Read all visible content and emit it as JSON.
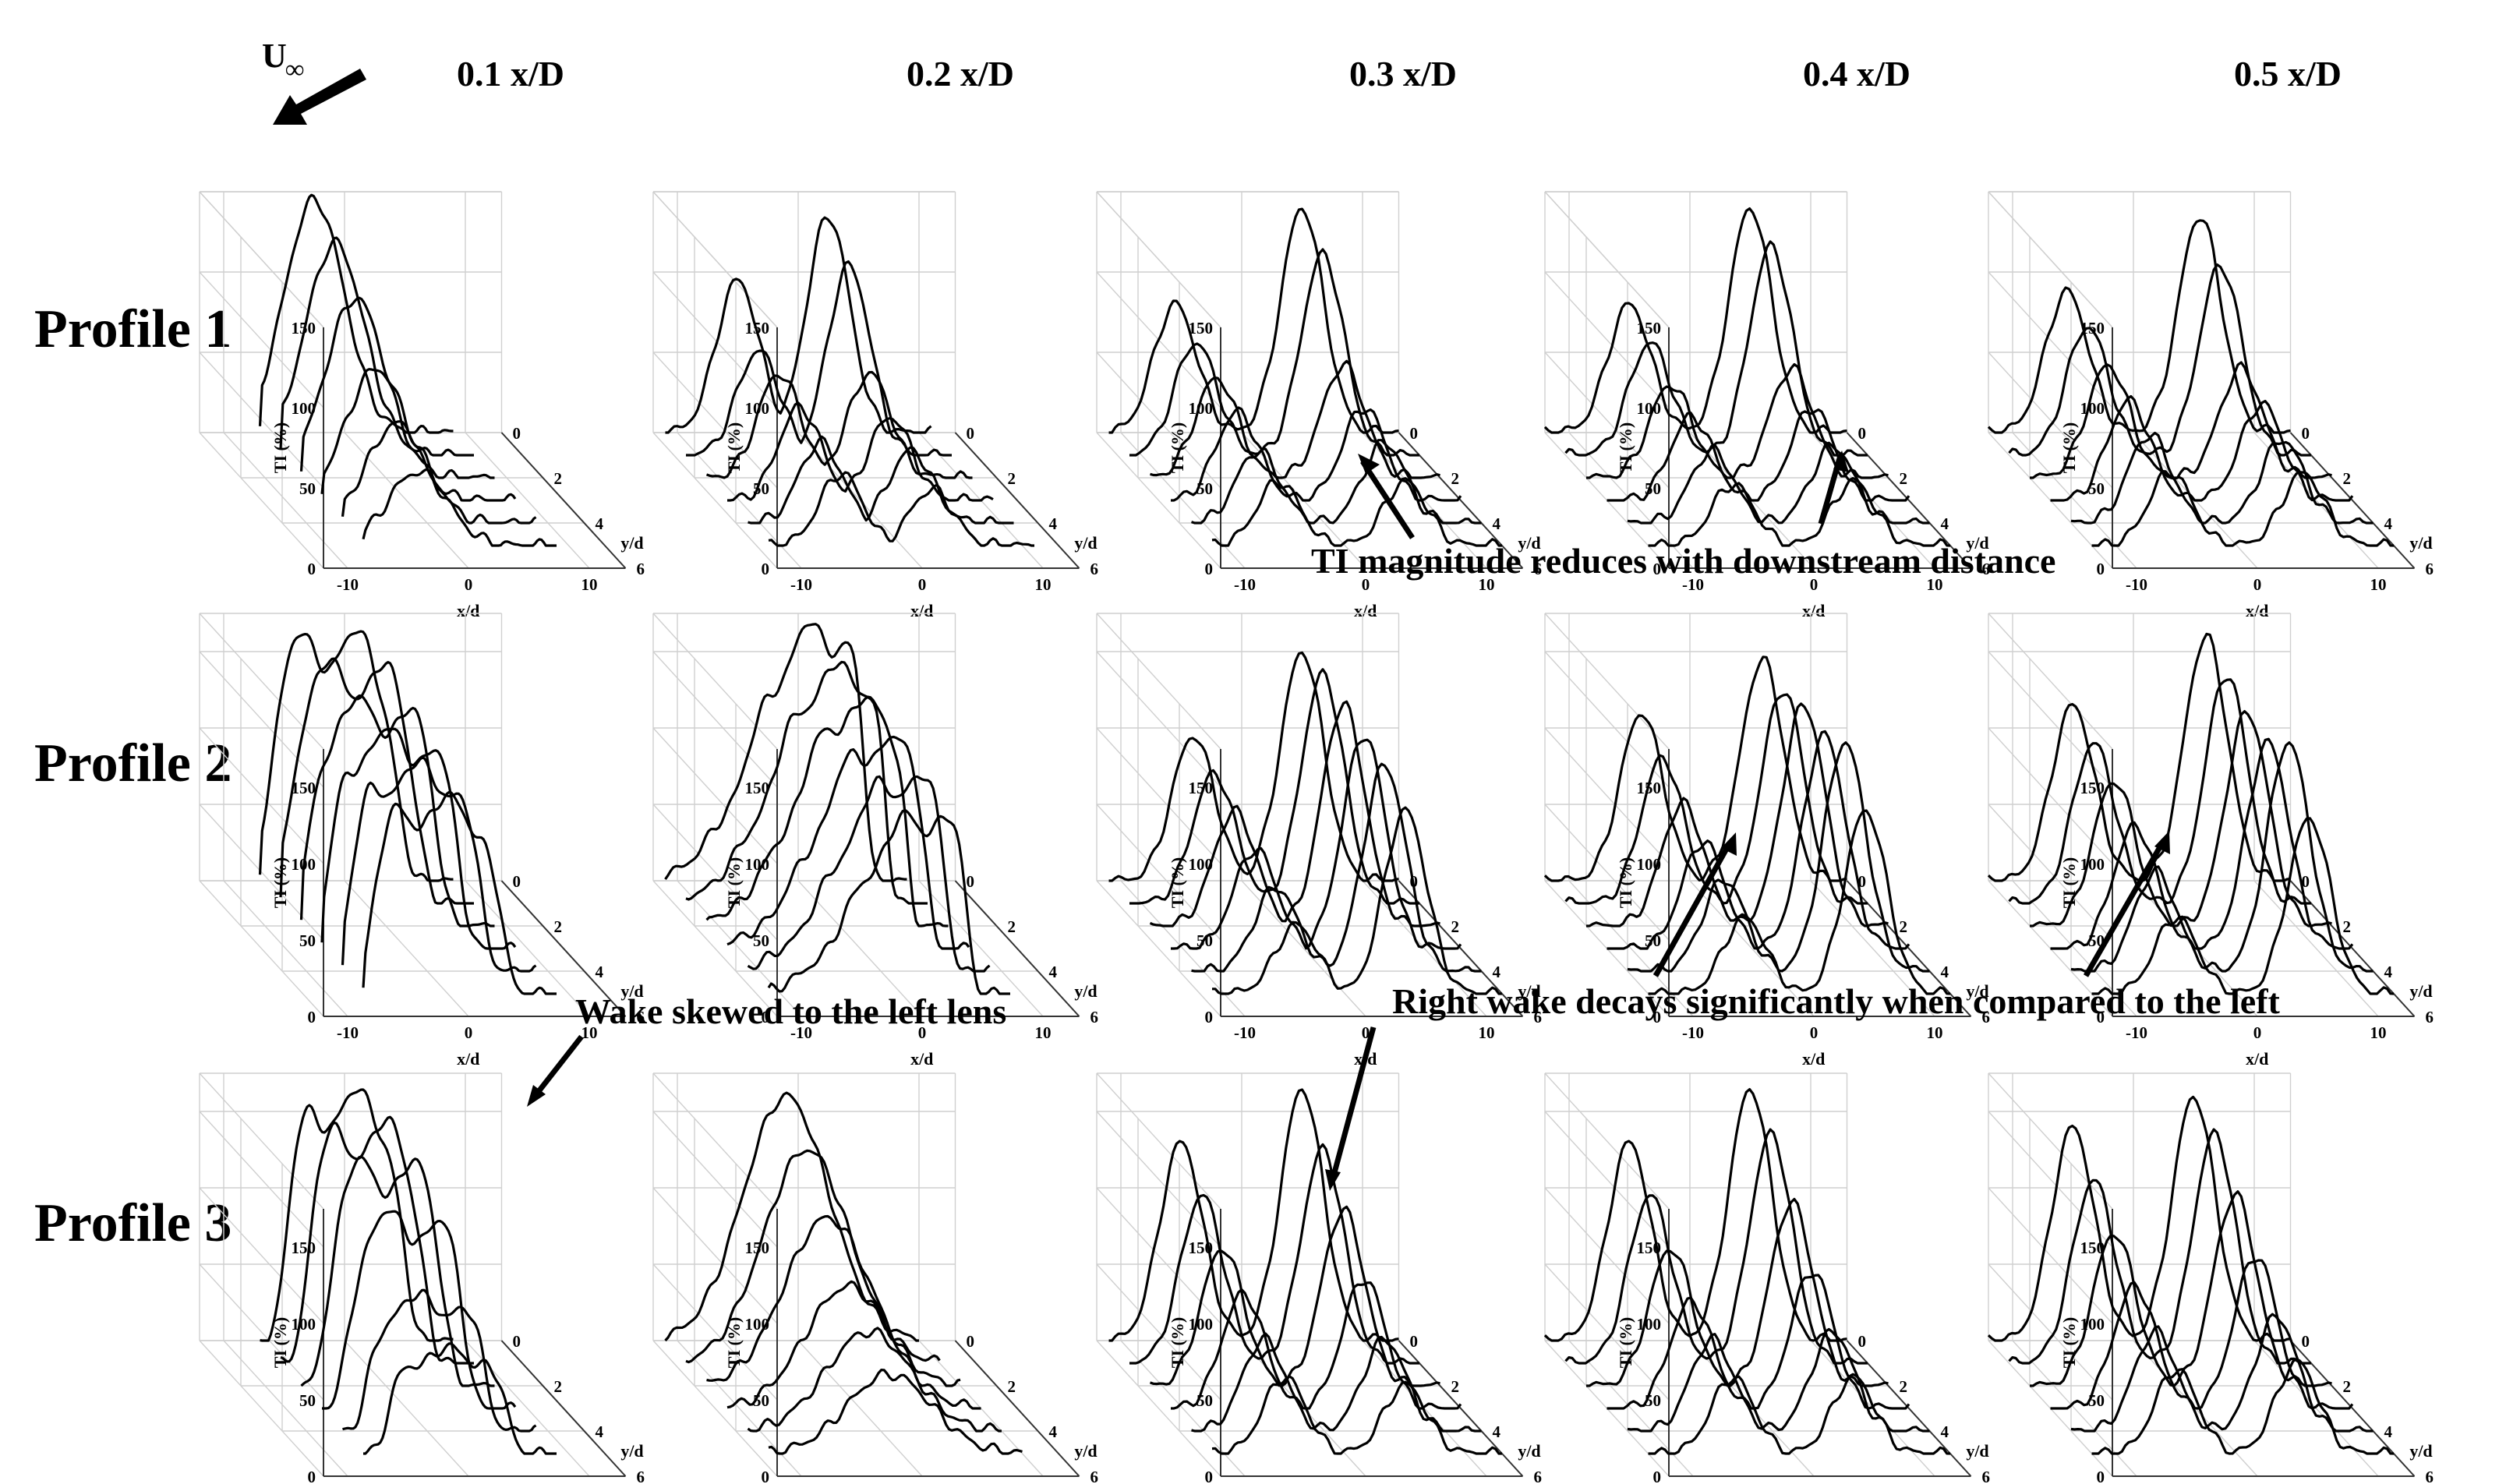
{
  "figure": {
    "freestream_label": "U",
    "freestream_subscript": "∞",
    "column_titles": [
      "0.1 x/D",
      "0.2 x/D",
      "0.3 x/D",
      "0.4 x/D",
      "0.5 x/D"
    ],
    "row_titles": [
      "Profile 1",
      "Profile 2",
      "Profile 3"
    ],
    "annotations": {
      "ti_magnitude": "TI magnitude reduces with downstream distance",
      "wake_skewed": "Wake skewed to the left lens",
      "right_wake": "Right wake decays significantly when compared to the left"
    }
  },
  "chart_data": {
    "type": "line",
    "subtype": "3d-waterfall",
    "layout": {
      "rows": 3,
      "cols": 5
    },
    "axes": {
      "xlabel": "x/d",
      "ylabel": "y/d",
      "zlabel": "TI (%)",
      "x_ticks": [
        -10,
        0,
        10
      ],
      "y_ticks": [
        0,
        2,
        4,
        6
      ],
      "z_ticks_profile1": [
        0,
        50,
        100,
        150
      ],
      "z_ticks_profile23": [
        0,
        50,
        100,
        150
      ],
      "xlim": [
        -12,
        13
      ],
      "ylim": [
        0,
        6
      ],
      "zlim_profile1": [
        0,
        150
      ],
      "zlim_profile23": [
        0,
        175
      ],
      "grid": true
    },
    "slice_y_positions": [
      0,
      1,
      2,
      3,
      4,
      5
    ],
    "panels": [
      {
        "row": 1,
        "col": 1,
        "mode": "single",
        "c1": -2.5,
        "w1": 3.5,
        "peaks": [
          46,
          62,
          82,
          112,
          132,
          145
        ],
        "edges": [
          -7,
          9
        ]
      },
      {
        "row": 1,
        "col": 2,
        "mode": "twin",
        "c1": -5,
        "c2": 2.5,
        "w1": 2.5,
        "w2": 2.5,
        "left": [
          45,
          50,
          58,
          65,
          65,
          95
        ],
        "right": [
          35,
          45,
          52,
          65,
          118,
          135
        ],
        "edges": [
          -11,
          11
        ]
      },
      {
        "row": 1,
        "col": 3,
        "mode": "twin",
        "c1": -5.5,
        "c2": 5,
        "w1": 2.5,
        "w2": 2.5,
        "left": [
          40,
          45,
          55,
          62,
          70,
          80
        ],
        "right": [
          40,
          50,
          58,
          70,
          125,
          140
        ],
        "edges": [
          -11,
          13
        ]
      },
      {
        "row": 1,
        "col": 4,
        "mode": "twin",
        "c1": -5,
        "c2": 5,
        "w1": 2.5,
        "w2": 2.5,
        "left": [
          38,
          45,
          52,
          58,
          70,
          80
        ],
        "right": [
          40,
          48,
          58,
          68,
          130,
          140
        ],
        "edges": [
          -12,
          13
        ]
      },
      {
        "row": 1,
        "col": 5,
        "mode": "twin",
        "c1": -5.5,
        "c2": 5.5,
        "w1": 2.5,
        "w2": 2.5,
        "left": [
          46,
          55,
          62,
          70,
          80,
          88
        ],
        "right": [
          45,
          52,
          60,
          68,
          118,
          135
        ],
        "edges": [
          -12,
          13
        ]
      },
      {
        "row": 2,
        "col": 1,
        "mode": "plateau",
        "c1": -1,
        "w1": 5.5,
        "peaks": [
          130,
          138,
          145,
          150,
          160,
          165
        ],
        "edges": [
          -7,
          9
        ]
      },
      {
        "row": 2,
        "col": 2,
        "mode": "ramp",
        "c1": 1,
        "w1": 6,
        "peaks": [
          120,
          130,
          140,
          150,
          158,
          170
        ],
        "edges": [
          -11,
          9
        ]
      },
      {
        "row": 2,
        "col": 3,
        "mode": "twin",
        "c1": -4,
        "c2": 5,
        "w1": 2.5,
        "w2": 2.5,
        "left": [
          45,
          55,
          65,
          75,
          85,
          95
        ],
        "right": [
          120,
          135,
          140,
          145,
          150,
          150
        ],
        "edges": [
          -11,
          13
        ]
      },
      {
        "row": 2,
        "col": 4,
        "mode": "twin",
        "c1": -4,
        "c2": 6,
        "w1": 2.5,
        "w2": 2.5,
        "left": [
          50,
          60,
          70,
          80,
          95,
          110
        ],
        "right": [
          120,
          150,
          140,
          145,
          140,
          145
        ],
        "edges": [
          -12,
          13
        ]
      },
      {
        "row": 2,
        "col": 5,
        "mode": "twin",
        "c1": -5,
        "c2": 6,
        "w1": 2.5,
        "w2": 2.5,
        "left": [
          50,
          65,
          80,
          95,
          105,
          115
        ],
        "right": [
          115,
          150,
          135,
          140,
          150,
          160
        ],
        "edges": [
          -12,
          13
        ]
      },
      {
        "row": 3,
        "col": 1,
        "mode": "plateau",
        "c1": 0,
        "w1": 5,
        "peaks": [
          70,
          90,
          130,
          150,
          160,
          165
        ],
        "edges": [
          -7,
          9
        ]
      },
      {
        "row": 3,
        "col": 2,
        "mode": "single",
        "c1": -1,
        "w1": 5,
        "peaks": [
          52,
          65,
          80,
          110,
          140,
          160
        ],
        "edges": [
          -11,
          10
        ]
      },
      {
        "row": 3,
        "col": 3,
        "mode": "twin",
        "c1": -5,
        "c2": 5,
        "w1": 2.5,
        "w2": 2.5,
        "left": [
          50,
          60,
          75,
          90,
          110,
          130
        ],
        "right": [
          45,
          60,
          85,
          115,
          140,
          165
        ],
        "edges": [
          -11,
          13
        ]
      },
      {
        "row": 3,
        "col": 4,
        "mode": "twin",
        "c1": -5,
        "c2": 5,
        "w1": 2.5,
        "w2": 2.5,
        "left": [
          50,
          60,
          70,
          90,
          110,
          130
        ],
        "right": [
          50,
          65,
          90,
          120,
          150,
          165
        ],
        "edges": [
          -12,
          13
        ]
      },
      {
        "row": 3,
        "col": 5,
        "mode": "twin",
        "c1": -5,
        "c2": 5,
        "w1": 2.5,
        "w2": 2.5,
        "left": [
          55,
          65,
          80,
          100,
          120,
          140
        ],
        "right": [
          60,
          75,
          100,
          125,
          150,
          160
        ],
        "edges": [
          -12,
          13
        ]
      }
    ]
  }
}
